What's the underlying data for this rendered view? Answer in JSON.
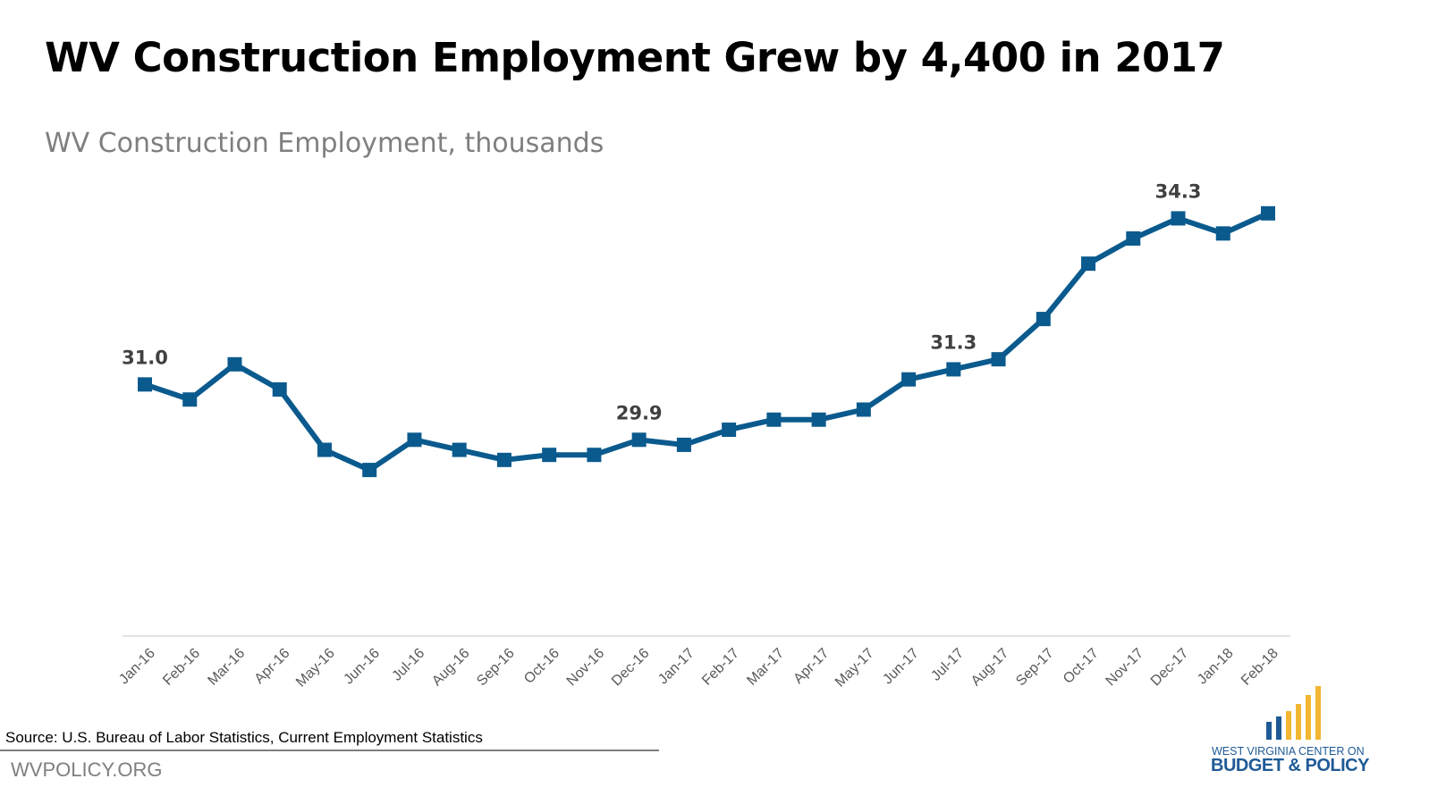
{
  "chart_data": {
    "type": "line",
    "title": "WV Construction Employment Grew by 4,400 in 2017",
    "subtitle": "WV Construction Employment, thousands",
    "categories": [
      "Jan-16",
      "Feb-16",
      "Mar-16",
      "Apr-16",
      "May-16",
      "Jun-16",
      "Jul-16",
      "Aug-16",
      "Sep-16",
      "Oct-16",
      "Nov-16",
      "Dec-16",
      "Jan-17",
      "Feb-17",
      "Mar-17",
      "Apr-17",
      "May-17",
      "Jun-17",
      "Jul-17",
      "Aug-17",
      "Sep-17",
      "Oct-17",
      "Nov-17",
      "Dec-17",
      "Jan-18",
      "Feb-18"
    ],
    "values": [
      31.0,
      30.7,
      31.4,
      30.9,
      29.7,
      29.3,
      29.9,
      29.7,
      29.5,
      29.6,
      29.6,
      29.9,
      29.8,
      30.1,
      30.3,
      30.3,
      30.5,
      31.1,
      31.3,
      31.5,
      32.3,
      33.4,
      33.9,
      34.3,
      34.0,
      34.4
    ],
    "data_labels": [
      {
        "category": "Jan-16",
        "text": "31.0"
      },
      {
        "category": "Dec-16",
        "text": "29.9"
      },
      {
        "category": "Jul-17",
        "text": "31.3"
      },
      {
        "category": "Dec-17",
        "text": "34.3"
      }
    ],
    "ylim": [
      26,
      35
    ],
    "grid": false,
    "marker": "square",
    "series_color": "#0b5a8e"
  },
  "footer": {
    "source": "Source: U.S. Bureau of Labor Statistics, Current Employment Statistics",
    "site": "WVPOLICY.ORG"
  },
  "logo": {
    "line1": "WEST VIRGINIA CENTER ON",
    "line2": "BUDGET & POLICY",
    "colors": {
      "blue": "#1f5a96",
      "gold": "#f2b632"
    }
  }
}
